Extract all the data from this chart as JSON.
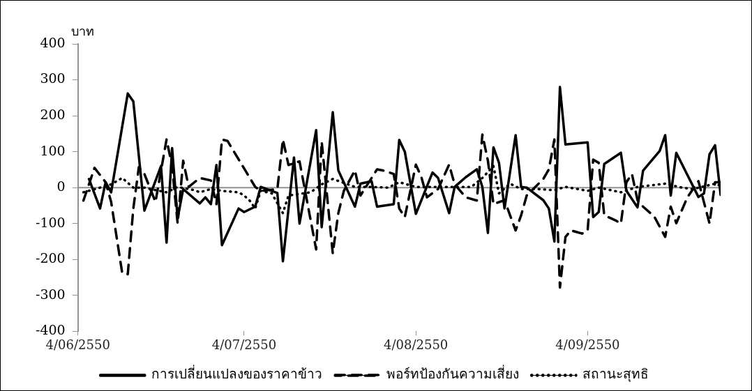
{
  "chart_data": {
    "type": "line",
    "ylabel": "บาท",
    "xlim": [
      "2007-06-04",
      "2007-09-28"
    ],
    "xticks": [
      {
        "value": "2007-06-04",
        "label": "4/06/2550"
      },
      {
        "value": "2007-07-04",
        "label": "4/07/2550"
      },
      {
        "value": "2007-08-04",
        "label": "4/08/2550"
      },
      {
        "value": "2007-09-04",
        "label": "4/09/2550"
      }
    ],
    "ylim": [
      -400,
      400
    ],
    "yticks": [
      -400,
      -300,
      -200,
      -100,
      0,
      100,
      200,
      300,
      400
    ],
    "grid": false,
    "ref_lines": [
      {
        "axis": "y",
        "value": 0,
        "color": "#909090"
      }
    ],
    "legend": "bottom",
    "marker": "none",
    "series": [
      {
        "name": "การเปลี่ยนแปลงของราคาข้าว",
        "color": "#000000",
        "line_style": "solid",
        "x": [
          "2007-06-06",
          "2007-06-08",
          "2007-06-09",
          "2007-06-10",
          "2007-06-13",
          "2007-06-14",
          "2007-06-16",
          "2007-06-19",
          "2007-06-20",
          "2007-06-21",
          "2007-06-22",
          "2007-06-23",
          "2007-06-26",
          "2007-06-27",
          "2007-06-28",
          "2007-06-29",
          "2007-06-30",
          "2007-07-03",
          "2007-07-04",
          "2007-07-06",
          "2007-07-07",
          "2007-07-10",
          "2007-07-11",
          "2007-07-13",
          "2007-07-14",
          "2007-07-17",
          "2007-07-18",
          "2007-07-20",
          "2007-07-21",
          "2007-07-24",
          "2007-07-25",
          "2007-07-27",
          "2007-07-28",
          "2007-07-31",
          "2007-08-01",
          "2007-08-02",
          "2007-08-04",
          "2007-08-07",
          "2007-08-08",
          "2007-08-10",
          "2007-08-11",
          "2007-08-13",
          "2007-08-15",
          "2007-08-16",
          "2007-08-17",
          "2007-08-18",
          "2007-08-19",
          "2007-08-20",
          "2007-08-22",
          "2007-08-23",
          "2007-08-24",
          "2007-08-27",
          "2007-08-28",
          "2007-08-29",
          "2007-08-30",
          "2007-08-31",
          "2007-09-04",
          "2007-09-05",
          "2007-09-06",
          "2007-09-07",
          "2007-09-10",
          "2007-09-11",
          "2007-09-13",
          "2007-09-14",
          "2007-09-17",
          "2007-09-18",
          "2007-09-19",
          "2007-09-20",
          "2007-09-24",
          "2007-09-25",
          "2007-09-26",
          "2007-09-27",
          "2007-09-28"
        ],
        "values": [
          24,
          -58,
          15,
          -13,
          262,
          240,
          -64,
          60,
          -153,
          110,
          -86,
          -4,
          -44,
          -27,
          -46,
          63,
          -160,
          -58,
          -68,
          -53,
          2,
          -15,
          -205,
          84,
          -100,
          160,
          -110,
          210,
          48,
          -53,
          11,
          18,
          -53,
          -46,
          133,
          100,
          -73,
          42,
          27,
          -71,
          2,
          29,
          51,
          2,
          -126,
          112,
          69,
          -58,
          146,
          2,
          0,
          -35,
          -58,
          -150,
          280,
          120,
          126,
          -82,
          -68,
          66,
          97,
          -9,
          -55,
          47,
          102,
          146,
          -22,
          97,
          -26,
          -16,
          93,
          118,
          -20
        ]
      },
      {
        "name": "พอร์ทป้องกันความเสี่ยง",
        "color": "#000000",
        "line_style": "dashed",
        "x": [
          "2007-06-05",
          "2007-06-07",
          "2007-06-09",
          "2007-06-10",
          "2007-06-12",
          "2007-06-13",
          "2007-06-14",
          "2007-06-15",
          "2007-06-16",
          "2007-06-18",
          "2007-06-20",
          "2007-06-21",
          "2007-06-22",
          "2007-06-23",
          "2007-06-24",
          "2007-06-26",
          "2007-06-28",
          "2007-06-29",
          "2007-06-30",
          "2007-07-01",
          "2007-07-06",
          "2007-07-07",
          "2007-07-10",
          "2007-07-11",
          "2007-07-12",
          "2007-07-14",
          "2007-07-16",
          "2007-07-17",
          "2007-07-18",
          "2007-07-20",
          "2007-07-21",
          "2007-07-22",
          "2007-07-24",
          "2007-07-25",
          "2007-07-28",
          "2007-07-29",
          "2007-07-31",
          "2007-08-01",
          "2007-08-02",
          "2007-08-04",
          "2007-08-05",
          "2007-08-06",
          "2007-08-08",
          "2007-08-10",
          "2007-08-11",
          "2007-08-13",
          "2007-08-15",
          "2007-08-16",
          "2007-08-17",
          "2007-08-18",
          "2007-08-20",
          "2007-08-22",
          "2007-08-23",
          "2007-08-24",
          "2007-08-27",
          "2007-08-28",
          "2007-08-29",
          "2007-08-30",
          "2007-08-31",
          "2007-09-01",
          "2007-09-03",
          "2007-09-04",
          "2007-09-05",
          "2007-09-06",
          "2007-09-07",
          "2007-09-09",
          "2007-09-10",
          "2007-09-11",
          "2007-09-12",
          "2007-09-13",
          "2007-09-14",
          "2007-09-16",
          "2007-09-18",
          "2007-09-19",
          "2007-09-20",
          "2007-09-22",
          "2007-09-24",
          "2007-09-26",
          "2007-09-27",
          "2007-09-28"
        ],
        "values": [
          -36,
          55,
          15,
          -40,
          -238,
          -241,
          -58,
          57,
          38,
          -40,
          134,
          60,
          -100,
          75,
          2,
          27,
          20,
          -46,
          134,
          130,
          2,
          -9,
          -4,
          134,
          63,
          73,
          -90,
          -172,
          128,
          -183,
          -71,
          -9,
          48,
          -22,
          51,
          48,
          38,
          -58,
          -82,
          64,
          29,
          -27,
          -4,
          64,
          9,
          -27,
          -36,
          148,
          75,
          -46,
          -35,
          -119,
          -77,
          -22,
          24,
          51,
          134,
          -278,
          -137,
          -119,
          -128,
          -119,
          78,
          69,
          -77,
          -91,
          -100,
          15,
          38,
          -35,
          -53,
          -80,
          -137,
          -53,
          -99,
          -27,
          18,
          -100,
          15,
          15
        ]
      },
      {
        "name": "สถานะสุทธิ",
        "color": "#000000",
        "line_style": "dotted",
        "x": [
          "2007-06-05",
          "2007-06-08",
          "2007-06-10",
          "2007-06-12",
          "2007-06-14",
          "2007-06-16",
          "2007-06-18",
          "2007-06-20",
          "2007-06-22",
          "2007-06-25",
          "2007-06-26",
          "2007-06-28",
          "2007-06-30",
          "2007-07-03",
          "2007-07-04",
          "2007-07-05",
          "2007-07-06",
          "2007-07-07",
          "2007-07-09",
          "2007-07-11",
          "2007-07-12",
          "2007-07-16",
          "2007-07-18",
          "2007-07-20",
          "2007-07-24",
          "2007-07-27",
          "2007-07-30",
          "2007-08-01",
          "2007-08-04",
          "2007-08-08",
          "2007-08-10",
          "2007-08-14",
          "2007-08-16",
          "2007-08-18",
          "2007-08-19",
          "2007-08-21",
          "2007-08-23",
          "2007-08-26",
          "2007-08-29",
          "2007-08-31",
          "2007-09-04",
          "2007-09-06",
          "2007-09-10",
          "2007-09-13",
          "2007-09-18",
          "2007-09-21",
          "2007-09-23",
          "2007-09-27",
          "2007-09-28"
        ],
        "values": [
          -13,
          0,
          9,
          27,
          0,
          0,
          -7,
          -13,
          2,
          -7,
          -13,
          -4,
          -9,
          -13,
          -22,
          -36,
          -58,
          -9,
          -16,
          -71,
          -22,
          -13,
          9,
          24,
          2,
          2,
          0,
          15,
          2,
          2,
          2,
          2,
          27,
          60,
          -16,
          11,
          -4,
          -4,
          -7,
          2,
          -9,
          0,
          -13,
          2,
          11,
          0,
          -4,
          11,
          5
        ]
      }
    ]
  }
}
